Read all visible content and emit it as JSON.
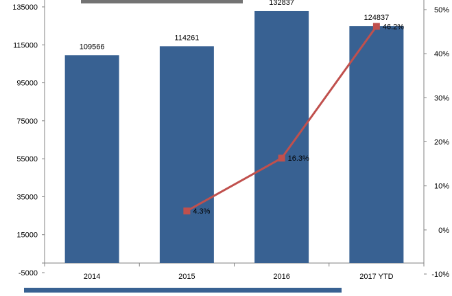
{
  "chart_data": {
    "type": "bar",
    "title": "",
    "xlabel": "",
    "ylabel": "",
    "categories": [
      "2014",
      "2015",
      "2016",
      "2017 YTD"
    ],
    "series": [
      {
        "type": "bar",
        "axis": "left",
        "values": [
          109566,
          114261,
          132837,
          124837
        ],
        "labels": [
          "109566",
          "114261",
          "132837",
          "124837"
        ],
        "color": "#386192"
      },
      {
        "type": "line",
        "axis": "right",
        "values": [
          null,
          4.3,
          16.3,
          46.2
        ],
        "labels": [
          "",
          "4.3%",
          "16.3%",
          "46.2%"
        ],
        "color": "#c0504d"
      }
    ],
    "left_axis": {
      "ylim": [
        -5000,
        135000
      ],
      "ticks": [
        "-5000",
        "15000",
        "35000",
        "55000",
        "75000",
        "95000",
        "115000",
        "135000"
      ]
    },
    "right_axis": {
      "ylim": [
        -10,
        50
      ],
      "ticks": [
        "-10%",
        "0%",
        "10%",
        "20%",
        "30%",
        "40%",
        "50%"
      ]
    },
    "grid": false,
    "legend": "bottom"
  }
}
